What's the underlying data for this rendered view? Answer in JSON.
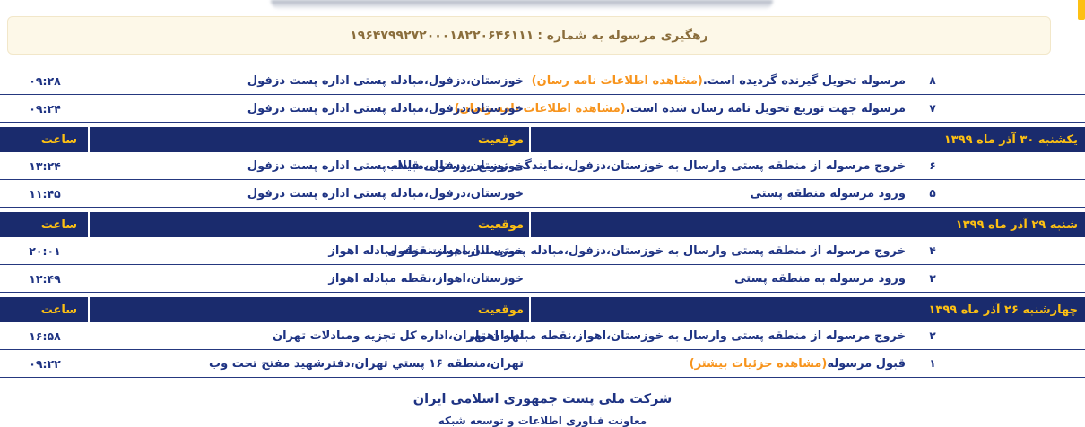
{
  "banner": {
    "label": "رهگیری مرسوله به شماره :",
    "tracking_number": "۱۹۶۴۷۹۹۲۷۲۰۰۰۱۸۲۲۰۶۴۶۱۱۱"
  },
  "table": {
    "header_labels": {
      "location": "موقعیت",
      "time": "ساعت"
    },
    "separators": [
      {
        "date": "یکشنبه ۳۰ آذر ماه ۱۳۹۹"
      },
      {
        "date": "شنبه ۲۹ آذر ماه ۱۳۹۹"
      },
      {
        "date": "چهارشنبه ۲۶ آذر ماه ۱۳۹۹"
      }
    ],
    "events": [
      {
        "num": "۸",
        "desc": "مرسوله تحویل گیرنده گردیده است.",
        "link": "(مشاهده اطلاعات نامه رسان)",
        "loc": "خوزستان،دزفول،مبادله پستی اداره پست دزفول",
        "time": "۰۹:۲۸"
      },
      {
        "num": "۷",
        "desc": "مرسوله جهت توزیع تحویل نامه رسان شده است.",
        "link": "(مشاهده اطلاعات نامه رسان)",
        "loc": "خوزستان،دزفول،مبادله پستی اداره پست دزفول",
        "time": "۰۹:۲۴"
      },
      {
        "num": "۶",
        "desc": "خروج مرسوله از منطقه پستی وارسال به خوزستان،دزفول،نمایندگی توزیع روستایی قیلاب",
        "link": "",
        "loc": "خوزستان،دزفول،مبادله پستی اداره پست دزفول",
        "time": "۱۳:۲۴"
      },
      {
        "num": "۵",
        "desc": "ورود مرسوله منطقه پستی",
        "link": "",
        "loc": "خوزستان،دزفول،مبادله پستی اداره پست دزفول",
        "time": "۱۱:۴۵"
      },
      {
        "num": "۴",
        "desc": "خروج مرسوله از منطقه پستی وارسال به خوزستان،دزفول،مبادله پستی اداره پست دزفول",
        "link": "",
        "loc": "خوزستان،اهواز،نقطه مبادله اهواز",
        "time": "۲۰:۰۱"
      },
      {
        "num": "۳",
        "desc": "ورود مرسوله به منطقه پستی",
        "link": "",
        "loc": "خوزستان،اهواز،نقطه مبادله اهواز",
        "time": "۱۲:۴۹"
      },
      {
        "num": "۲",
        "desc": "خروج مرسوله از منطقه پستی وارسال به خوزستان،اهواز،نقطه مبادله اهواز",
        "link": "",
        "loc": "تهران،تهران،اداره کل تجزیه ومبادلات تهران",
        "time": "۱۶:۵۸"
      },
      {
        "num": "۱",
        "desc": "قبول مرسوله",
        "link": "(مشاهده جزئیات بیشتر)",
        "loc": "تهران،منطقه ۱۶ پستي تهران،دفترشهید مفتح تحت وب",
        "time": "۰۹:۲۲"
      }
    ]
  },
  "footer": {
    "line1": "شرکت ملی پست جمهوری اسلامی ایران",
    "line2": "معاونت فناوری اطلاعات و توسعه شبکه"
  },
  "colors": {
    "navy": "#1e3383",
    "separator_bg": "#1a2b6d",
    "gold": "#fdc013",
    "orange": "#f7941d",
    "banner_bg": "#fdf8e8",
    "banner_border": "#f2e7c9",
    "banner_text": "#8a6d3b"
  }
}
